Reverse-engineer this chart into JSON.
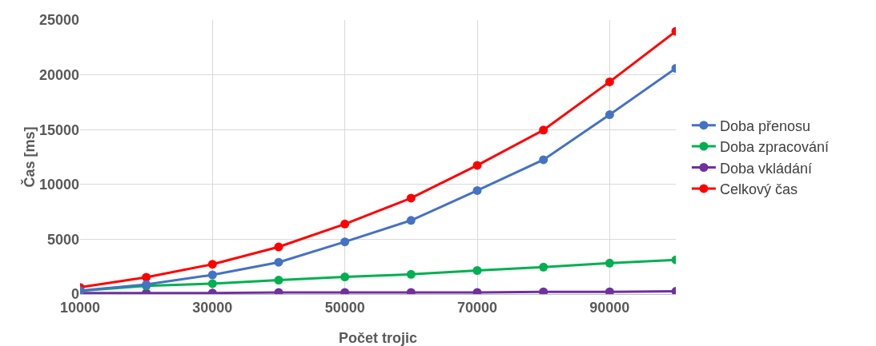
{
  "chart_data": {
    "type": "line",
    "xlabel": "Počet trojic",
    "ylabel": "Čas [ms]",
    "x": [
      10000,
      20000,
      30000,
      40000,
      50000,
      60000,
      70000,
      80000,
      90000,
      100000
    ],
    "xlim": [
      10000,
      100000
    ],
    "xticks": [
      10000,
      30000,
      50000,
      70000,
      90000
    ],
    "ylim": [
      0,
      25000
    ],
    "yticks": [
      0,
      5000,
      10000,
      15000,
      20000,
      25000
    ],
    "grid": true,
    "legend": "right",
    "marker": "circle",
    "line_style": "solid",
    "series": [
      {
        "name": "Doba přenosu",
        "color": "#4472c4",
        "values": [
          300,
          870,
          1750,
          2900,
          4760,
          6720,
          9440,
          12250,
          16360,
          20590
        ]
      },
      {
        "name": "Doba zpracování",
        "color": "#00b050",
        "values": [
          300,
          740,
          950,
          1270,
          1560,
          1800,
          2150,
          2460,
          2820,
          3120
        ]
      },
      {
        "name": "Doba vkládání",
        "color": "#7030a0",
        "values": [
          100,
          100,
          100,
          150,
          150,
          150,
          150,
          200,
          200,
          250
        ]
      },
      {
        "name": "Celkový čas",
        "color": "#ff0000",
        "values": [
          610,
          1530,
          2720,
          4300,
          6390,
          8750,
          11740,
          14960,
          19360,
          23970
        ]
      }
    ]
  }
}
